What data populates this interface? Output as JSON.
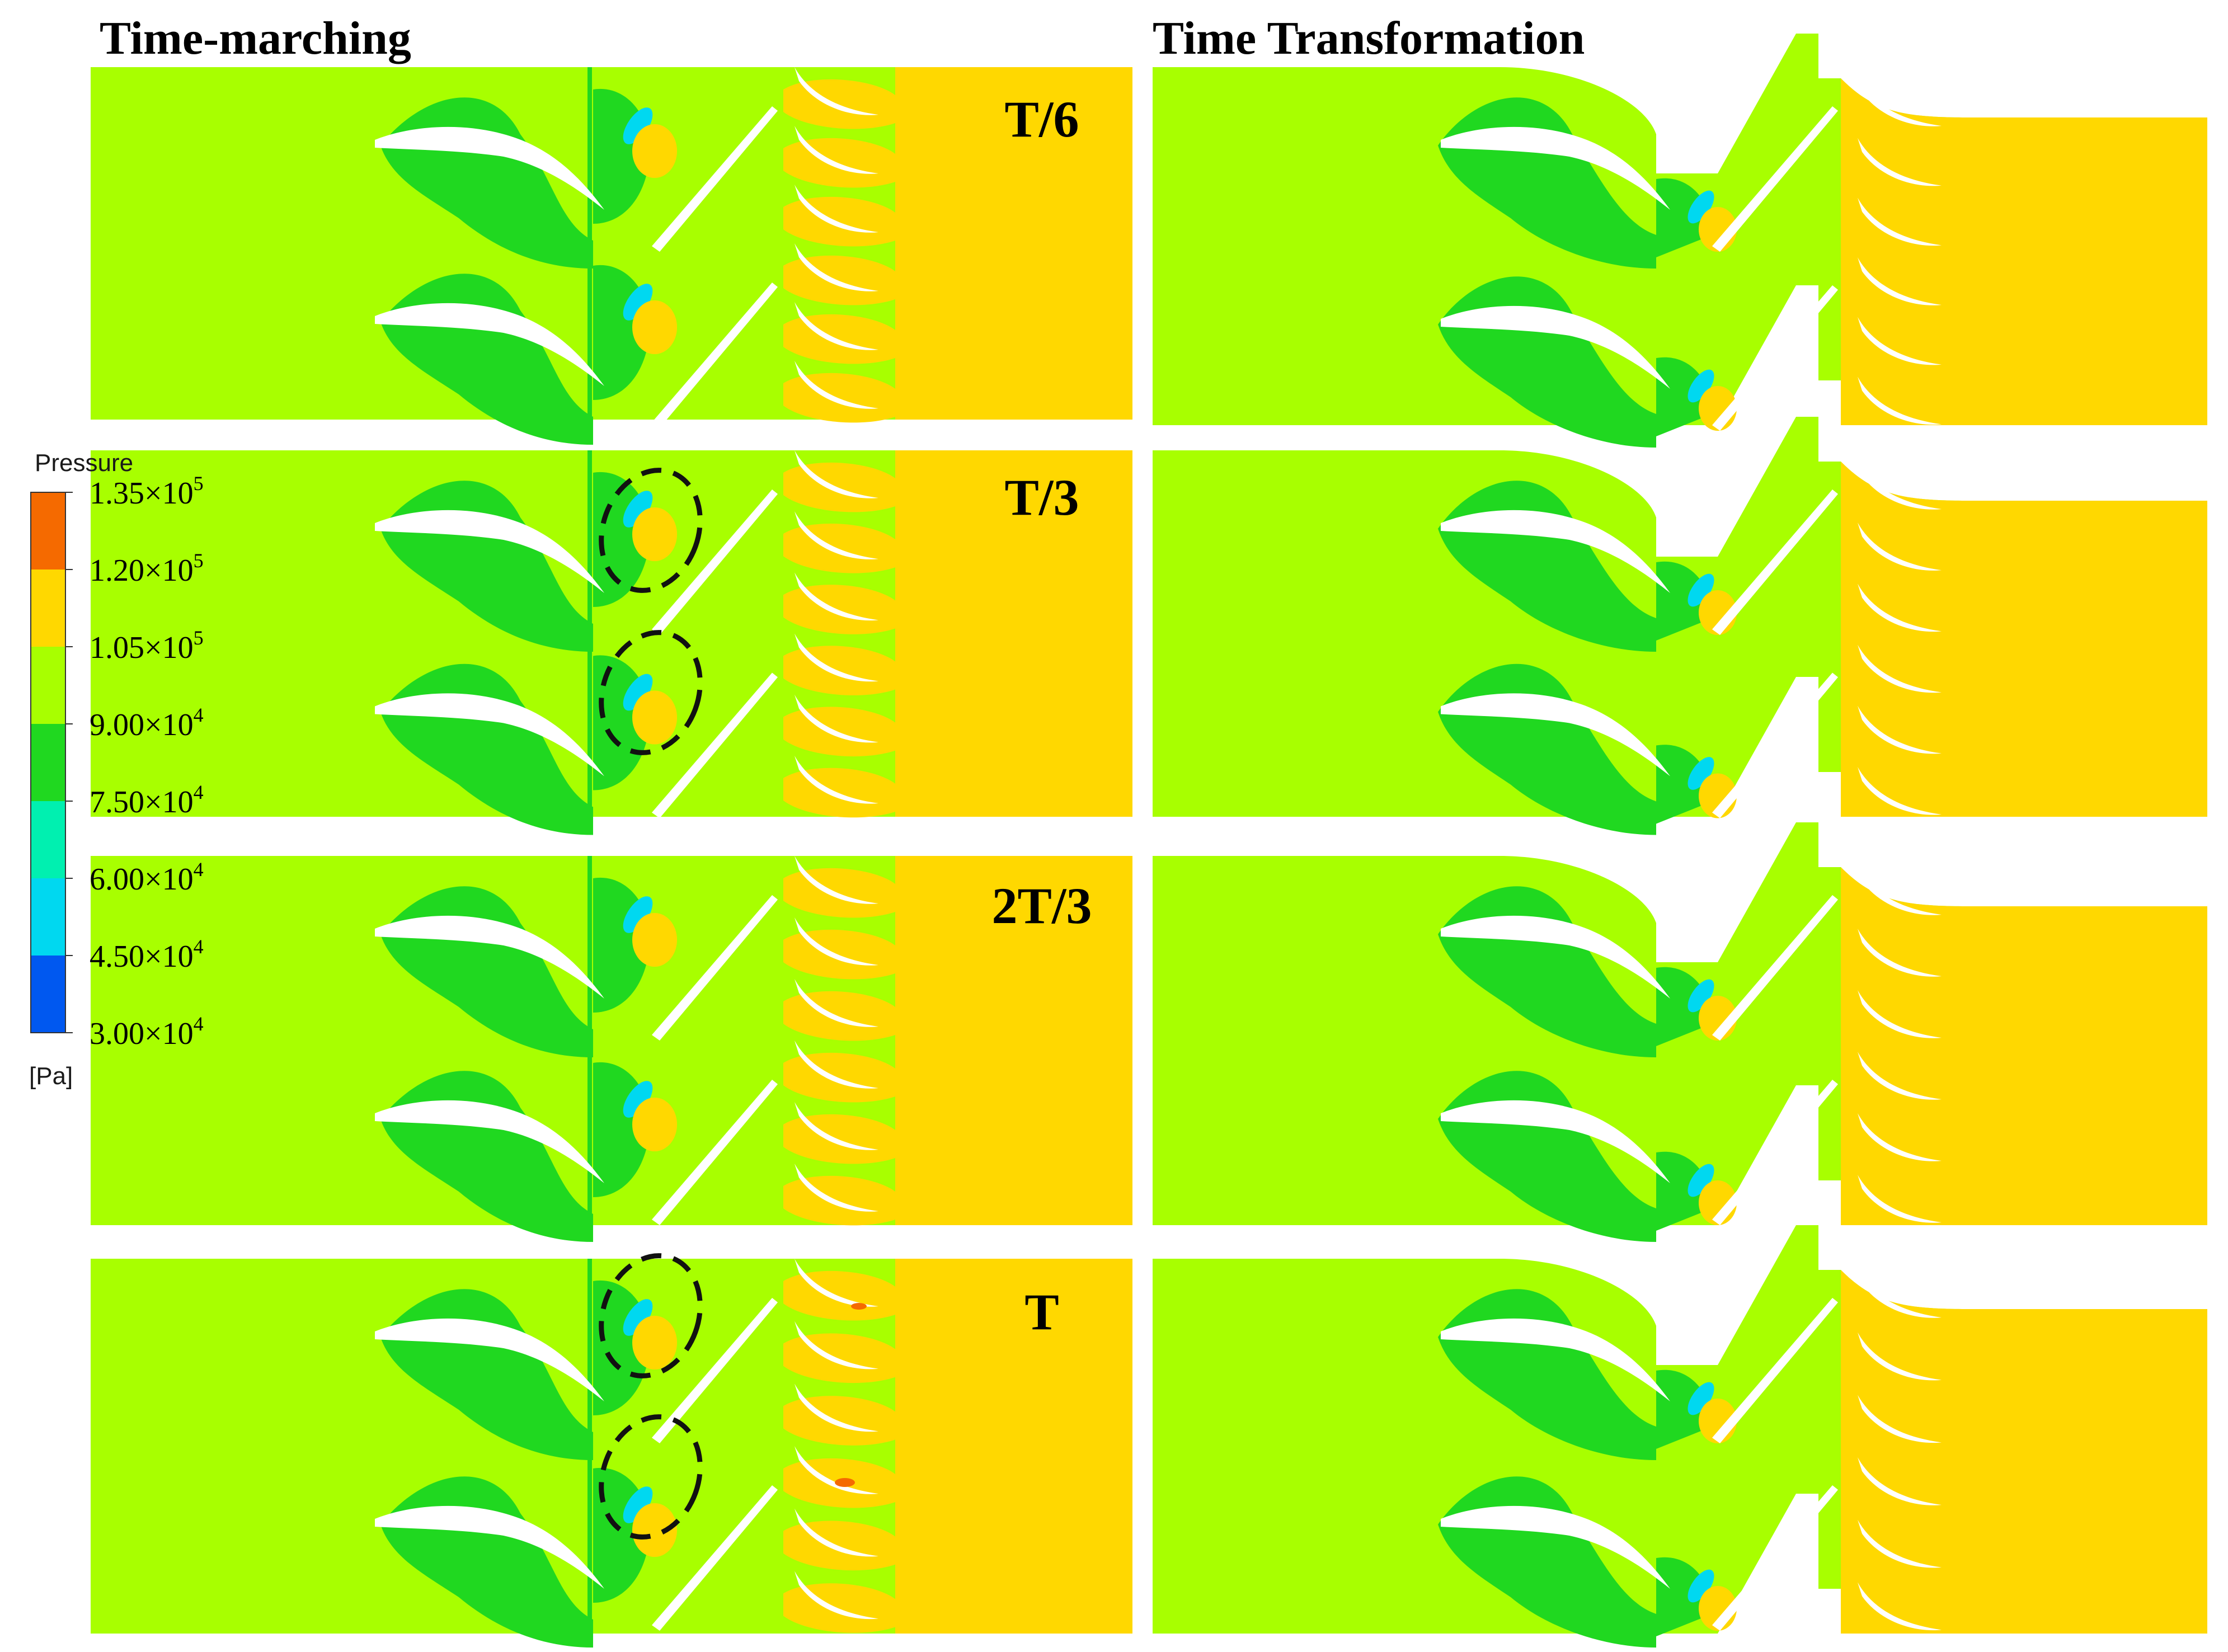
{
  "headings": {
    "left": "Time-marching",
    "right": "Time Transformation"
  },
  "panel_labels": [
    "T/6",
    "T/3",
    "2T/3",
    "T"
  ],
  "legend": {
    "title": "Pressure",
    "unit": "[Pa]",
    "ticks": [
      {
        "mantissa": "1.35×10",
        "exp": "5"
      },
      {
        "mantissa": "1.20×10",
        "exp": "5"
      },
      {
        "mantissa": "1.05×10",
        "exp": "5"
      },
      {
        "mantissa": "9.00×10",
        "exp": "4"
      },
      {
        "mantissa": "7.50×10",
        "exp": "4"
      },
      {
        "mantissa": "6.00×10",
        "exp": "4"
      },
      {
        "mantissa": "4.50×10",
        "exp": "4"
      },
      {
        "mantissa": "3.00×10",
        "exp": "4"
      }
    ],
    "bands": [
      "#f56a00",
      "#ffd800",
      "#a8ff00",
      "#20d820",
      "#00f0b0",
      "#00d8f0",
      "#0058f0"
    ]
  },
  "colors": {
    "outlet_high": "#ffd800",
    "base_field": "#a8ff00",
    "low_region": "#20d820",
    "very_low": "#00d8f0",
    "peak": "#f56a00",
    "blade": "#ffffff"
  }
}
